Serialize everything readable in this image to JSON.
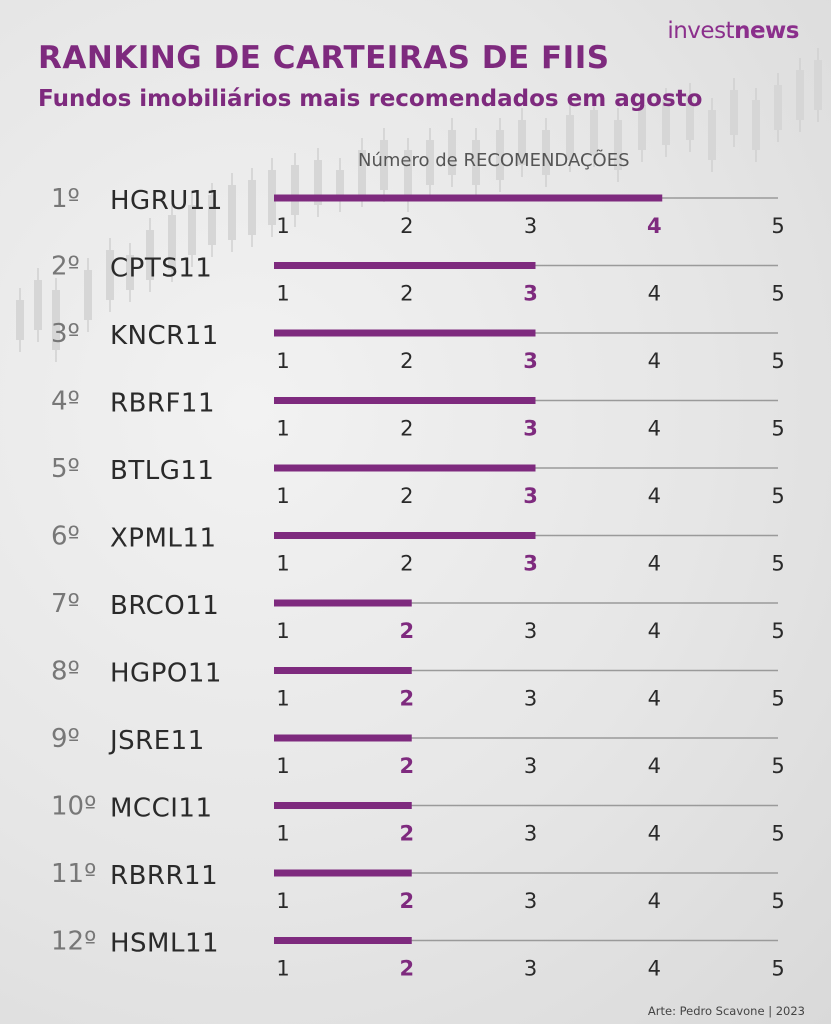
{
  "brand": {
    "logo_light": "invest",
    "logo_bold": "news"
  },
  "header": {
    "title": "RANKING DE CARTEIRAS DE FIIS",
    "subtitle": "Fundos imobiliários mais recomendados em agosto"
  },
  "footer": {
    "credit": "Arte: Pedro Scavone | 2023"
  },
  "colors": {
    "accent": "#7e2a7e",
    "track": "#9a9a9a",
    "text": "#2a2a2a",
    "rank": "#777777"
  },
  "chart_data": {
    "type": "bar",
    "orientation": "horizontal",
    "xlabel": "Número de RECOMENDAÇÕES",
    "xlim": [
      1,
      5
    ],
    "ticks": [
      "1",
      "2",
      "3",
      "4",
      "5"
    ],
    "ranks": [
      "1º",
      "2º",
      "3º",
      "4º",
      "5º",
      "6º",
      "7º",
      "8º",
      "9º",
      "10º",
      "11º",
      "12º"
    ],
    "categories": [
      "HGRU11",
      "CPTS11",
      "KNCR11",
      "RBRF11",
      "BTLG11",
      "XPML11",
      "BRCO11",
      "HGPO11",
      "JSRE11",
      "MCCI11",
      "RBRR11",
      "HSML11"
    ],
    "values": [
      4,
      3,
      3,
      3,
      3,
      3,
      2,
      2,
      2,
      2,
      2,
      2
    ],
    "grid": false
  }
}
